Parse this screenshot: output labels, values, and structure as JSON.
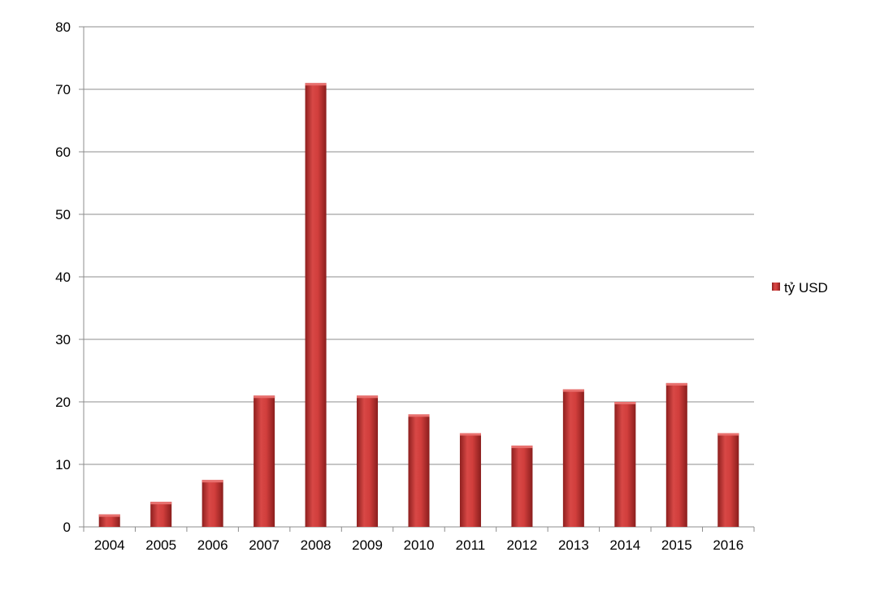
{
  "chart_data": {
    "type": "bar",
    "title": "",
    "xlabel": "",
    "ylabel": "",
    "categories": [
      "2004",
      "2005",
      "2006",
      "2007",
      "2008",
      "2009",
      "2010",
      "2011",
      "2012",
      "2013",
      "2014",
      "2015",
      "2016"
    ],
    "series": [
      {
        "name": "tỷ USD",
        "color": "#c0302f",
        "values": [
          2,
          4,
          7.5,
          21,
          71,
          21,
          18,
          15,
          13,
          22,
          20,
          23,
          15
        ]
      }
    ],
    "ylim": [
      0,
      80
    ],
    "yticks": [
      "0",
      "10",
      "20",
      "30",
      "40",
      "50",
      "60",
      "70",
      "80"
    ],
    "grid": true,
    "legend": "right"
  }
}
